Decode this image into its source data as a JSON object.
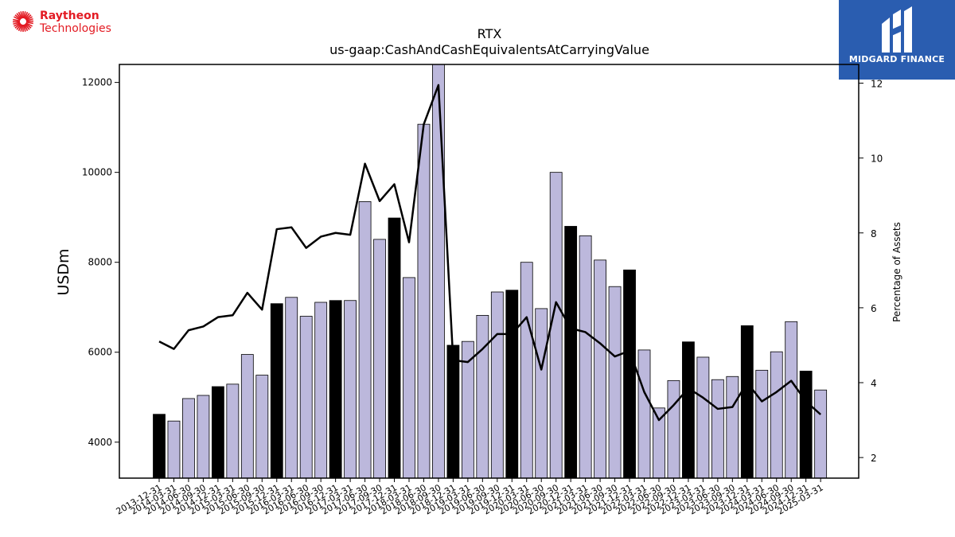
{
  "logos": {
    "company": {
      "line1": "Raytheon",
      "line2": "Technologies"
    },
    "publisher": {
      "name": "MIDGARD FINANCE"
    }
  },
  "colors": {
    "bar_regular": "#bcb8dc",
    "bar_highlight": "#000000",
    "line": "#000000",
    "accent_red": "#e31b23",
    "publisher_blue": "#2a5db0"
  },
  "chart_data": {
    "type": "bar",
    "title": "RTX",
    "subtitle": "us-gaap:CashAndCashEquivalentsAtCarryingValue",
    "ylabel": "USDm",
    "y2label": "Percentage of Assets",
    "ylim": [
      3200,
      12400
    ],
    "y2lim": [
      1.45,
      12.5
    ],
    "yticks": [
      4000,
      6000,
      8000,
      10000,
      12000
    ],
    "y2ticks": [
      2,
      4,
      6,
      8,
      10,
      12
    ],
    "categories": [
      "2013-12-31",
      "2014-03-31",
      "2014-06-30",
      "2014-09-30",
      "2014-12-31",
      "2015-03-31",
      "2015-06-30",
      "2015-09-30",
      "2015-12-31",
      "2016-03-31",
      "2016-06-30",
      "2016-09-30",
      "2016-12-31",
      "2017-03-31",
      "2017-06-30",
      "2017-09-30",
      "2017-12-31",
      "2018-03-31",
      "2018-06-30",
      "2018-09-30",
      "2018-12-31",
      "2019-03-31",
      "2019-06-30",
      "2019-09-30",
      "2019-12-31",
      "2020-03-31",
      "2020-06-30",
      "2020-09-30",
      "2020-12-31",
      "2021-03-31",
      "2021-06-30",
      "2021-09-30",
      "2021-12-31",
      "2022-03-31",
      "2022-06-30",
      "2022-09-30",
      "2022-12-31",
      "2023-03-31",
      "2023-06-30",
      "2023-09-30",
      "2023-12-31",
      "2024-03-31",
      "2024-06-30",
      "2024-09-30",
      "2024-12-31",
      "2025-03-31"
    ],
    "series": [
      {
        "type": "bar",
        "axis": "left",
        "values": [
          4620,
          4470,
          4970,
          5040,
          5235,
          5290,
          5950,
          5490,
          7080,
          7220,
          6800,
          7110,
          7150,
          7150,
          9350,
          8510,
          8985,
          7660,
          11070,
          12500,
          6155,
          6240,
          6820,
          7340,
          7380,
          8000,
          6970,
          10000,
          8800,
          8590,
          8050,
          7460,
          7830,
          6050,
          4760,
          5370,
          6230,
          5890,
          5390,
          5460,
          6590,
          5600,
          6010,
          6680,
          5580,
          5160
        ],
        "highlight": [
          true,
          false,
          false,
          false,
          true,
          false,
          false,
          false,
          true,
          false,
          false,
          false,
          true,
          false,
          false,
          false,
          true,
          false,
          false,
          false,
          true,
          false,
          false,
          false,
          true,
          false,
          false,
          false,
          true,
          false,
          false,
          false,
          true,
          false,
          false,
          false,
          true,
          false,
          false,
          false,
          true,
          false,
          false,
          false,
          true,
          false
        ]
      },
      {
        "type": "line",
        "axis": "right",
        "values": [
          5.1,
          4.9,
          5.4,
          5.5,
          5.75,
          5.8,
          6.4,
          5.95,
          8.1,
          8.15,
          7.6,
          7.9,
          8.0,
          7.95,
          9.85,
          8.85,
          9.3,
          7.75,
          10.9,
          11.95,
          4.6,
          4.55,
          4.9,
          5.3,
          5.3,
          5.75,
          4.35,
          6.15,
          5.45,
          5.35,
          5.05,
          4.7,
          4.85,
          3.75,
          3.0,
          3.4,
          3.85,
          3.6,
          3.3,
          3.35,
          4.0,
          3.5,
          3.75,
          4.05,
          3.5,
          3.15
        ]
      }
    ]
  }
}
